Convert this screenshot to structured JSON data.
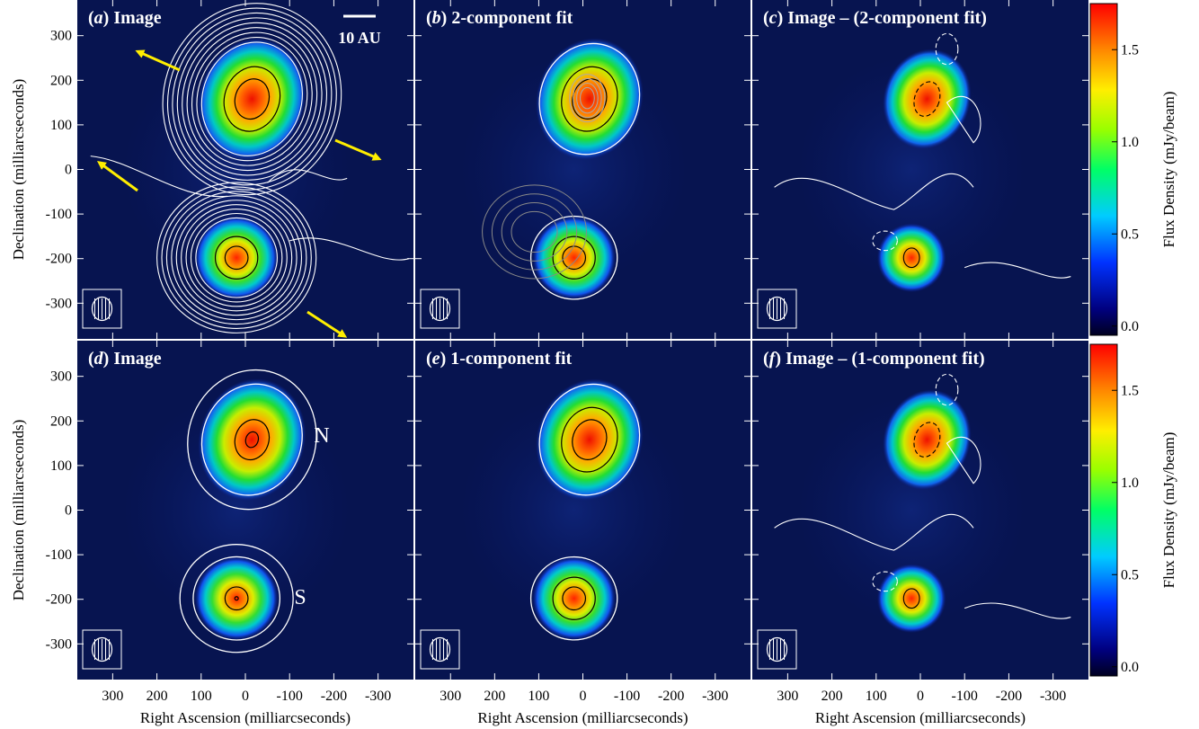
{
  "panels": [
    {
      "id": "a",
      "letter": "a",
      "title": "Image"
    },
    {
      "id": "b",
      "letter": "b",
      "title": "2-component fit"
    },
    {
      "id": "c",
      "letter": "c",
      "title": "Image – (2-component fit)"
    },
    {
      "id": "d",
      "letter": "d",
      "title": "Image"
    },
    {
      "id": "e",
      "letter": "e",
      "title": "1-component fit"
    },
    {
      "id": "f",
      "letter": "f",
      "title": "Image – (1-component fit)"
    }
  ],
  "scalebar_label": "10 AU",
  "source_labels": {
    "north": "N",
    "south": "S"
  },
  "axes": {
    "xlabel": "Right Ascension (milliarcseconds)",
    "ylabel": "Declination (milliarcseconds)",
    "xticks": [
      "300",
      "200",
      "100",
      "0",
      "-100",
      "-200",
      "-300"
    ],
    "yticks": [
      "300",
      "200",
      "100",
      "0",
      "-100",
      "-200",
      "-300"
    ],
    "xrange": [
      380,
      -380
    ],
    "yrange": [
      -380,
      380
    ]
  },
  "colorbar": {
    "label": "Flux Density (mJy/beam)",
    "ticks": [
      "0.0",
      "0.5",
      "1.0",
      "1.5"
    ],
    "range": [
      -0.05,
      1.75
    ]
  },
  "colors": {
    "arrow": "#ffee00",
    "contour": "#ffffff",
    "inner_contour": "#000000",
    "background": "#000033"
  }
}
